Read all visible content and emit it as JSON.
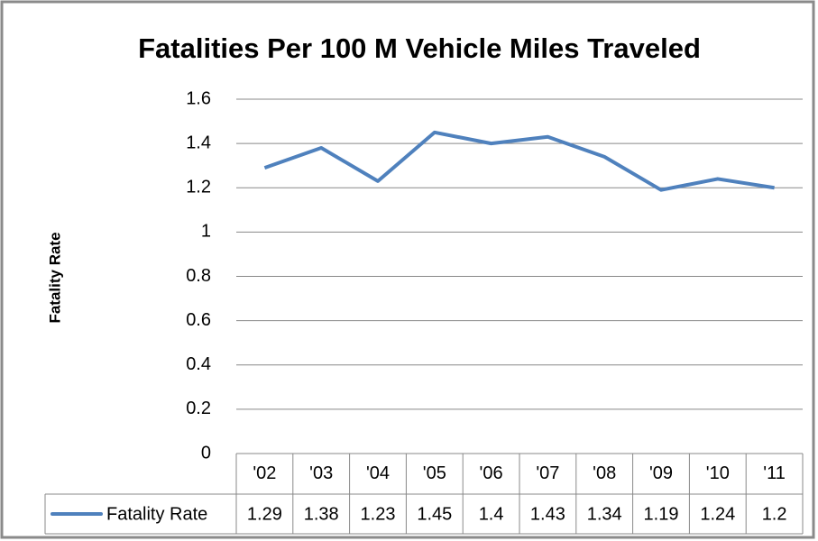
{
  "chart_data": {
    "type": "line",
    "title": "Fatalities Per 100 M Vehicle Miles Traveled",
    "y_label": "Fatality Rate",
    "categories": [
      "'02",
      "'03",
      "'04",
      "'05",
      "'06",
      "'07",
      "'08",
      "'09",
      "'10",
      "'11"
    ],
    "series": [
      {
        "name": "Fatality Rate",
        "color": "#4f81bd",
        "values": [
          1.29,
          1.38,
          1.23,
          1.45,
          1.4,
          1.43,
          1.34,
          1.19,
          1.24,
          1.2
        ]
      }
    ],
    "ylim": [
      0,
      1.6
    ],
    "yticks": [
      0,
      0.2,
      0.4,
      0.6,
      0.8,
      1,
      1.2,
      1.4,
      1.6
    ],
    "grid": true,
    "data_table": true
  }
}
